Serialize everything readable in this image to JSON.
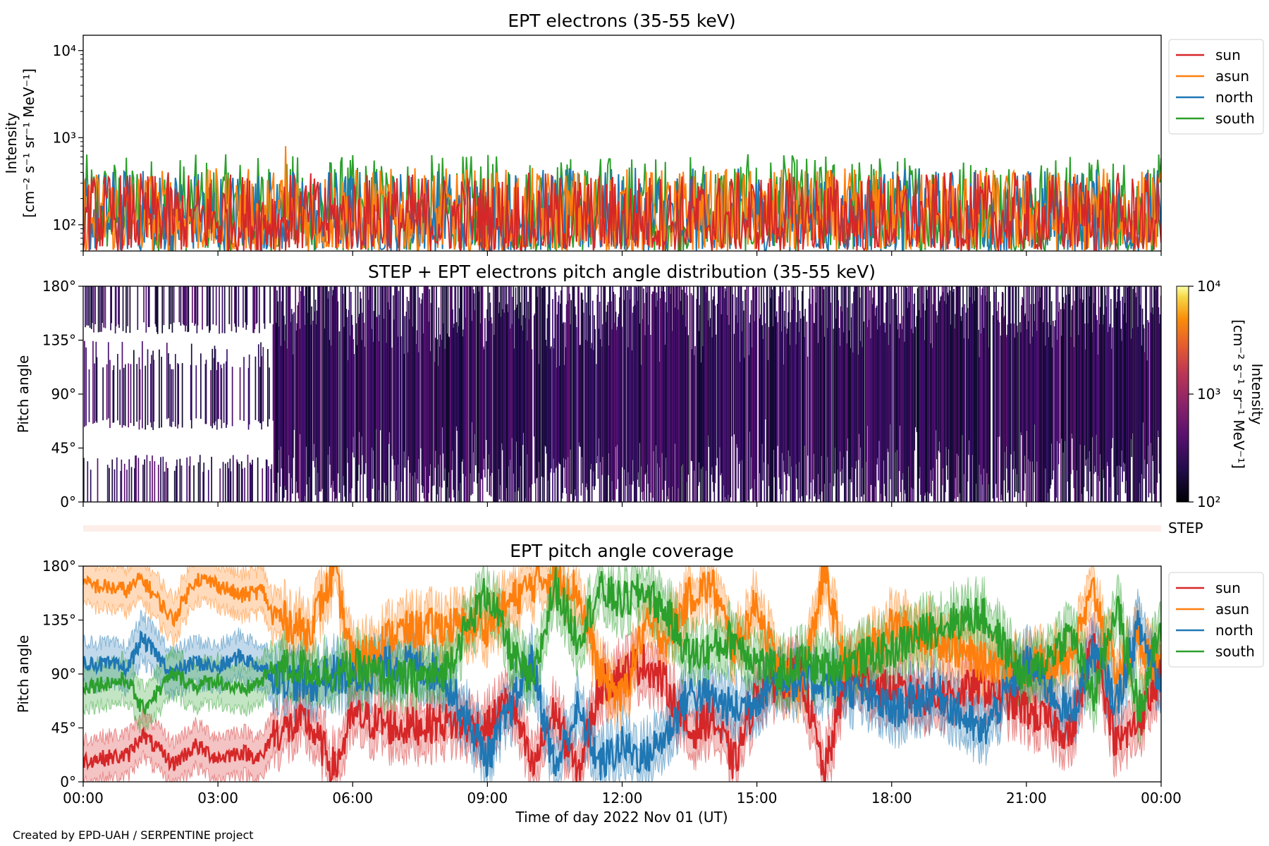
{
  "credit": "Created by EPD-UAH / SERPENTINE project",
  "colors": {
    "sun": "#d62728",
    "asun": "#ff7f0e",
    "north": "#1f77b4",
    "south": "#2ca02c"
  },
  "chart_data": [
    {
      "type": "line",
      "title": "EPT electrons (35-55 keV)",
      "ylabel": "Intensity",
      "yunit": "[cm⁻² s⁻¹ sr⁻¹ MeV⁻¹]",
      "yscale": "log",
      "ylim": [
        50,
        15000
      ],
      "yticks": [
        {
          "value": 100,
          "label": "10²"
        },
        {
          "value": 1000,
          "label": "10³"
        },
        {
          "value": 10000,
          "label": "10⁴"
        }
      ],
      "xlim": [
        "2022-11-01 00:00",
        "2022-11-02 00:00"
      ],
      "legend": {
        "position": "outside-right",
        "entries": [
          "sun",
          "asun",
          "north",
          "south"
        ]
      },
      "series": [
        {
          "name": "sun",
          "typical_range": [
            50,
            400
          ]
        },
        {
          "name": "asun",
          "typical_range": [
            50,
            450
          ],
          "peak": {
            "x": "2022-11-01 04:30",
            "y": 800
          }
        },
        {
          "name": "north",
          "typical_range": [
            50,
            450
          ]
        },
        {
          "name": "south",
          "typical_range": [
            50,
            650
          ]
        }
      ]
    },
    {
      "type": "heatmap",
      "title": "STEP + EPT electrons pitch angle distribution (35-55 keV)",
      "ylabel": "Pitch angle",
      "ylim": [
        0,
        180
      ],
      "yticks": [
        "0°",
        "45°",
        "90°",
        "135°",
        "180°"
      ],
      "xlim": [
        "2022-11-01 00:00",
        "2022-11-02 00:00"
      ],
      "colorbar": {
        "label": "Intensity",
        "unit": "[cm⁻² s⁻¹ sr⁻¹ MeV⁻¹]",
        "scale": "log",
        "range": [
          100,
          10000
        ],
        "ticks": [
          "10²",
          "10³",
          "10⁴"
        ],
        "colormap": "inferno"
      },
      "typical_intensity": [
        100,
        300
      ]
    },
    {
      "type": "heatmap",
      "label": "STEP",
      "xlim": [
        "2022-11-01 00:00",
        "2022-11-02 00:00"
      ]
    },
    {
      "type": "line",
      "title": "EPT pitch angle coverage",
      "ylabel": "Pitch angle",
      "xlabel": "Time of day 2022 Nov 01 (UT)",
      "ylim": [
        0,
        180
      ],
      "yticks": [
        "0°",
        "45°",
        "90°",
        "135°",
        "180°"
      ],
      "xticks": [
        "00:00",
        "03:00",
        "06:00",
        "09:00",
        "12:00",
        "15:00",
        "18:00",
        "21:00",
        "00:00"
      ],
      "xlim": [
        "2022-11-01 00:00",
        "2022-11-02 00:00"
      ],
      "legend": {
        "position": "outside-right",
        "entries": [
          "sun",
          "asun",
          "north",
          "south"
        ]
      },
      "band_halfwidth_deg": 18,
      "series": [
        {
          "name": "sun",
          "x_hours": [
            0,
            1,
            1.3,
            2,
            2.5,
            3,
            3.5,
            4,
            4.2,
            5,
            5.6,
            6,
            7,
            8,
            9,
            9.5,
            10,
            10.5,
            11,
            11.5,
            12,
            12.5,
            13,
            13.5,
            14,
            14.5,
            15,
            15.5,
            16,
            16.5,
            17,
            18,
            19,
            20,
            21,
            22,
            22.5,
            23,
            23.5,
            24
          ],
          "y": [
            18,
            22,
            40,
            15,
            30,
            20,
            25,
            20,
            40,
            50,
            10,
            55,
            45,
            50,
            45,
            70,
            10,
            60,
            5,
            80,
            90,
            100,
            80,
            40,
            55,
            15,
            75,
            85,
            90,
            5,
            90,
            75,
            70,
            80,
            60,
            40,
            120,
            30,
            50,
            90
          ]
        },
        {
          "name": "asun",
          "x_hours": [
            0,
            1,
            1.3,
            2,
            2.5,
            3,
            3.5,
            4,
            4.2,
            5,
            5.6,
            6,
            7,
            8,
            9,
            9.5,
            10,
            10.5,
            11,
            11.5,
            12,
            12.5,
            13,
            13.5,
            14,
            14.5,
            15,
            15.5,
            16,
            16.5,
            17,
            18,
            19,
            20,
            21,
            22,
            22.5,
            23,
            23.5,
            24
          ],
          "y": [
            165,
            160,
            170,
            135,
            170,
            165,
            155,
            160,
            140,
            125,
            175,
            100,
            125,
            130,
            130,
            150,
            165,
            175,
            160,
            90,
            70,
            130,
            120,
            155,
            165,
            110,
            150,
            90,
            80,
            175,
            90,
            130,
            120,
            100,
            95,
            105,
            160,
            90,
            120,
            90
          ]
        },
        {
          "name": "north",
          "x_hours": [
            0,
            1,
            1.3,
            2,
            2.5,
            3,
            3.5,
            4,
            4.2,
            5,
            5.6,
            6,
            7,
            8,
            9,
            9.5,
            10,
            10.5,
            11,
            11.5,
            12,
            12.5,
            13,
            13.5,
            14,
            14.5,
            15,
            15.5,
            16,
            16.5,
            17,
            18,
            19,
            20,
            21,
            22,
            22.5,
            23,
            23.5,
            24
          ],
          "y": [
            100,
            95,
            120,
            90,
            100,
            95,
            105,
            95,
            90,
            80,
            90,
            85,
            100,
            90,
            20,
            60,
            100,
            10,
            60,
            15,
            30,
            20,
            40,
            75,
            70,
            60,
            70,
            90,
            80,
            85,
            80,
            60,
            75,
            40,
            100,
            55,
            110,
            65,
            130,
            80
          ]
        },
        {
          "name": "south",
          "x_hours": [
            0,
            1,
            1.3,
            2,
            2.5,
            3,
            3.5,
            4,
            4.2,
            5,
            5.6,
            6,
            7,
            8,
            9,
            9.5,
            10,
            10.5,
            11,
            11.5,
            12,
            12.5,
            13,
            13.5,
            14,
            14.5,
            15,
            15.5,
            16,
            16.5,
            17,
            18,
            19,
            20,
            21,
            22,
            22.5,
            23,
            23.5,
            24
          ],
          "y": [
            80,
            85,
            60,
            90,
            80,
            85,
            75,
            85,
            95,
            95,
            90,
            95,
            85,
            90,
            160,
            110,
            80,
            165,
            120,
            160,
            150,
            160,
            140,
            105,
            110,
            120,
            100,
            90,
            100,
            95,
            100,
            110,
            130,
            140,
            85,
            125,
            70,
            150,
            60,
            130
          ]
        }
      ]
    }
  ]
}
